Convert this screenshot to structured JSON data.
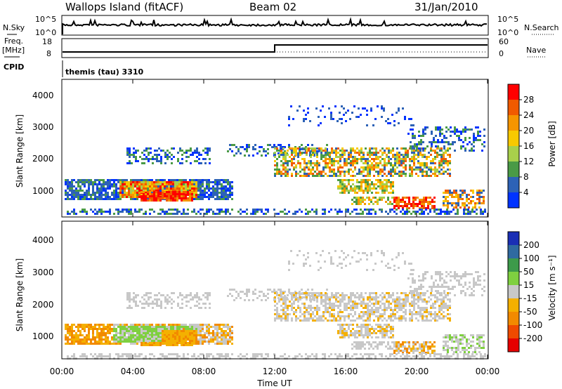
{
  "header": {
    "station": "Wallops Island (fitACF)",
    "beam": "Beam 02",
    "date": "31/Jan/2010"
  },
  "status_panels": {
    "nsky_label": "N.Sky",
    "nsky_ticks": [
      "10^5",
      "10^0"
    ],
    "nsearch_label": "N.Search",
    "nsearch_ticks": [
      "10^5",
      "10^0"
    ],
    "freq_label_1": "Freq.",
    "freq_label_2": "[MHz]",
    "freq_ticks": [
      "18",
      "8"
    ],
    "nave_label": "Nave",
    "nave_ticks": [
      "60",
      "0"
    ],
    "cpid_label": "CPID",
    "cpid_text": "themis (tau) 3310"
  },
  "chart_data": [
    {
      "type": "heatmap",
      "panel": "power",
      "ylabel": "Slant Range [km]",
      "yticks": [
        "1000",
        "2000",
        "3000",
        "4000"
      ],
      "ylim": [
        200,
        4500
      ],
      "colorbar_label": "Power [dB]",
      "colorbar_ticks": [
        "28",
        "24",
        "20",
        "16",
        "12",
        "8",
        "4"
      ],
      "colors": [
        "#ff0000",
        "#f05a00",
        "#f59500",
        "#f8c900",
        "#a8d04b",
        "#4a9a46",
        "#2d62b6",
        "#0033ff"
      ]
    },
    {
      "type": "heatmap",
      "panel": "velocity",
      "ylabel": "Slant Range [km]",
      "yticks": [
        "1000",
        "2000",
        "3000",
        "4000"
      ],
      "ylim": [
        200,
        4500
      ],
      "colorbar_label": "Velocity [m s⁻¹]",
      "colorbar_ticks": [
        "200",
        "100",
        "50",
        "15",
        "-15",
        "-50",
        "-100",
        "-200"
      ],
      "colors": [
        "#1a2fb5",
        "#2f6aa0",
        "#3d9a4a",
        "#7fd040",
        "#c8c8c8",
        "#f4b000",
        "#f28a00",
        "#ef4a00",
        "#e60000"
      ]
    }
  ],
  "time_axis": {
    "ticks": [
      "00:00",
      "04:00",
      "08:00",
      "12:00",
      "16:00",
      "20:00",
      "00:00"
    ],
    "label": "Time UT"
  }
}
